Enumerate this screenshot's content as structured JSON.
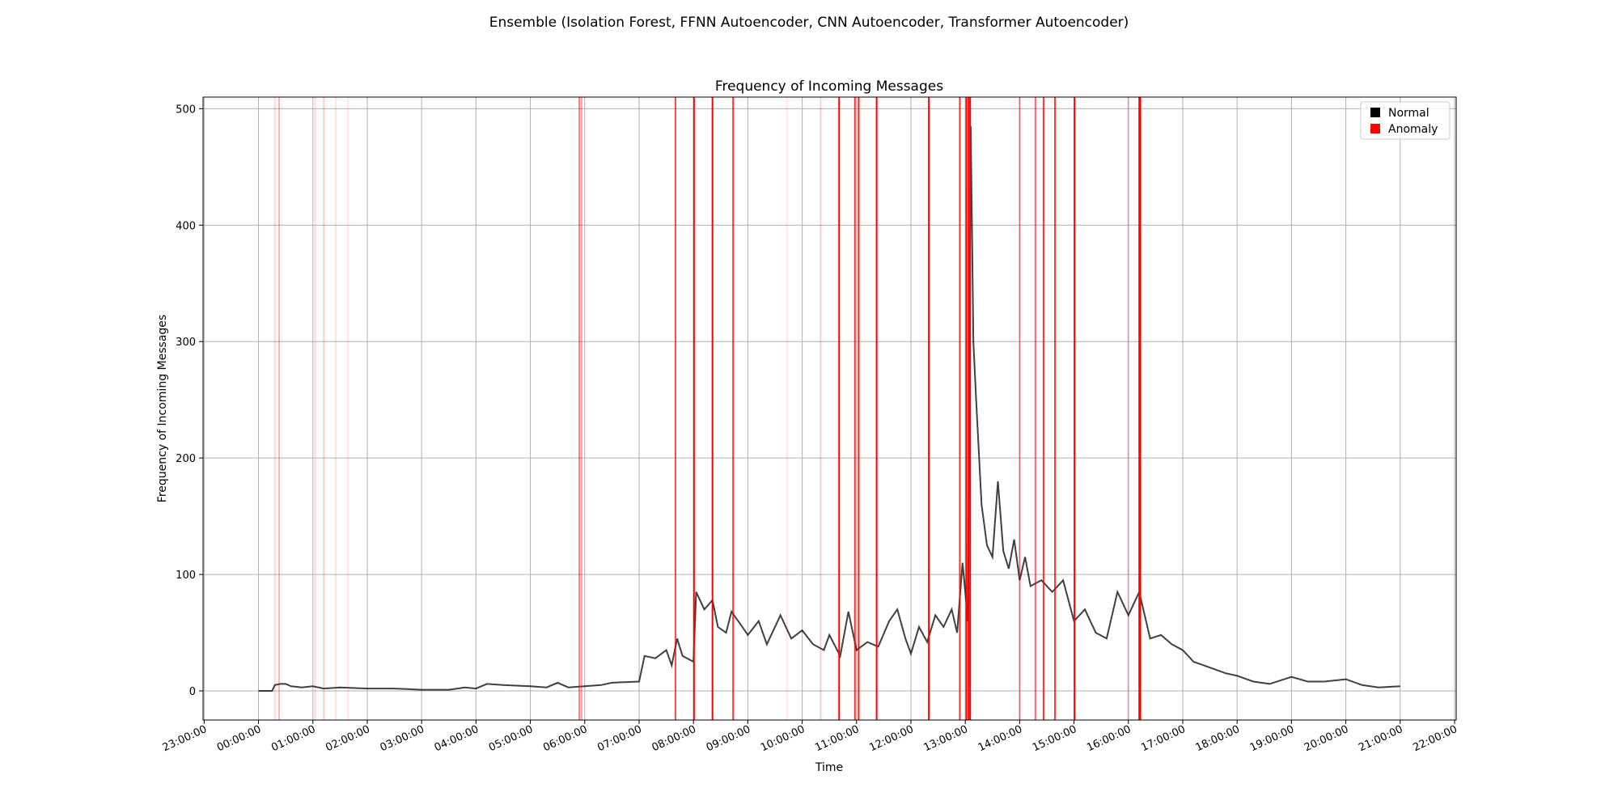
{
  "chart_data": {
    "type": "line",
    "suptitle": "Ensemble (Isolation Forest, FFNN Autoencoder, CNN Autoencoder, Transformer Autoencoder)",
    "title": "Frequency of Incoming Messages",
    "xlabel": "Time",
    "ylabel": "Frequency of Incoming Messages",
    "xlim": [
      -1.02,
      22.03
    ],
    "ylim": [
      -25,
      510
    ],
    "xticks": [
      {
        "value": -1,
        "label": "23:00:00"
      },
      {
        "value": 0,
        "label": "00:00:00"
      },
      {
        "value": 1,
        "label": "01:00:00"
      },
      {
        "value": 2,
        "label": "02:00:00"
      },
      {
        "value": 3,
        "label": "03:00:00"
      },
      {
        "value": 4,
        "label": "04:00:00"
      },
      {
        "value": 5,
        "label": "05:00:00"
      },
      {
        "value": 6,
        "label": "06:00:00"
      },
      {
        "value": 7,
        "label": "07:00:00"
      },
      {
        "value": 8,
        "label": "08:00:00"
      },
      {
        "value": 9,
        "label": "09:00:00"
      },
      {
        "value": 10,
        "label": "10:00:00"
      },
      {
        "value": 11,
        "label": "11:00:00"
      },
      {
        "value": 12,
        "label": "12:00:00"
      },
      {
        "value": 13,
        "label": "13:00:00"
      },
      {
        "value": 14,
        "label": "14:00:00"
      },
      {
        "value": 15,
        "label": "15:00:00"
      },
      {
        "value": 16,
        "label": "16:00:00"
      },
      {
        "value": 17,
        "label": "17:00:00"
      },
      {
        "value": 18,
        "label": "18:00:00"
      },
      {
        "value": 19,
        "label": "19:00:00"
      },
      {
        "value": 20,
        "label": "20:00:00"
      },
      {
        "value": 21,
        "label": "21:00:00"
      },
      {
        "value": 22,
        "label": "22:00:00"
      }
    ],
    "yticks": [
      0,
      100,
      200,
      300,
      400,
      500
    ],
    "grid": true,
    "legend": "upper right",
    "series": [
      {
        "name": "Normal",
        "color": "#000000",
        "x": [
          0.0,
          0.25,
          0.3,
          0.4,
          0.5,
          0.6,
          0.8,
          1.0,
          1.2,
          1.5,
          2.0,
          2.5,
          3.0,
          3.5,
          3.8,
          4.0,
          4.2,
          4.5,
          5.0,
          5.3,
          5.5,
          5.7,
          6.0,
          6.3,
          6.5,
          7.0,
          7.1,
          7.3,
          7.5,
          7.6,
          7.7,
          7.8,
          8.0,
          8.05,
          8.2,
          8.35,
          8.45,
          8.6,
          8.7,
          8.9,
          9.0,
          9.2,
          9.35,
          9.5,
          9.6,
          9.8,
          10.0,
          10.2,
          10.4,
          10.5,
          10.7,
          10.85,
          11.0,
          11.2,
          11.4,
          11.6,
          11.75,
          11.9,
          12.0,
          12.15,
          12.3,
          12.45,
          12.6,
          12.75,
          12.85,
          12.95,
          13.05,
          13.1,
          13.15,
          13.2,
          13.3,
          13.4,
          13.5,
          13.6,
          13.7,
          13.8,
          13.9,
          14.0,
          14.1,
          14.2,
          14.4,
          14.6,
          14.8,
          15.0,
          15.2,
          15.4,
          15.6,
          15.8,
          16.0,
          16.2,
          16.4,
          16.6,
          16.8,
          17.0,
          17.2,
          17.5,
          17.8,
          18.0,
          18.3,
          18.6,
          19.0,
          19.3,
          19.6,
          20.0,
          20.3,
          20.6,
          21.0
        ],
        "values": [
          0,
          0,
          5,
          6,
          6,
          4,
          3,
          4,
          2,
          3,
          2,
          2,
          1,
          1,
          3,
          2,
          6,
          5,
          4,
          3,
          7,
          3,
          4,
          5,
          7,
          8,
          30,
          28,
          35,
          22,
          45,
          30,
          25,
          85,
          70,
          78,
          55,
          50,
          68,
          55,
          48,
          60,
          40,
          55,
          65,
          45,
          52,
          40,
          35,
          48,
          30,
          68,
          35,
          42,
          38,
          60,
          70,
          45,
          32,
          55,
          42,
          65,
          55,
          70,
          50,
          110,
          60,
          485,
          300,
          250,
          160,
          125,
          115,
          180,
          120,
          105,
          130,
          95,
          115,
          90,
          95,
          85,
          95,
          60,
          70,
          50,
          45,
          85,
          65,
          85,
          45,
          48,
          40,
          35,
          25,
          20,
          15,
          13,
          8,
          6,
          12,
          8,
          8,
          10,
          5,
          3,
          4
        ]
      },
      {
        "name": "Anomaly",
        "color": "#ff0000",
        "x": [
          0.3,
          0.38,
          1.04,
          1.2,
          1.42,
          1.65,
          5.9,
          5.94,
          7.67,
          8.01,
          8.35,
          8.73,
          9.72,
          10.34,
          10.68,
          10.97,
          11.04,
          11.37,
          12.33,
          12.9,
          13.02,
          13.06,
          13.09,
          14.0,
          14.29,
          14.44,
          14.65,
          15.01,
          16.0,
          16.2,
          16.22
        ],
        "alpha": [
          0.15,
          0.3,
          0.15,
          0.2,
          0.1,
          0.1,
          0.5,
          0.4,
          0.7,
          1,
          1,
          0.8,
          0.1,
          0.2,
          1,
          0.8,
          0.9,
          1,
          1,
          0.8,
          1,
          1,
          1,
          0.4,
          0.6,
          0.8,
          0.8,
          1,
          0.2,
          1,
          1
        ]
      }
    ]
  }
}
